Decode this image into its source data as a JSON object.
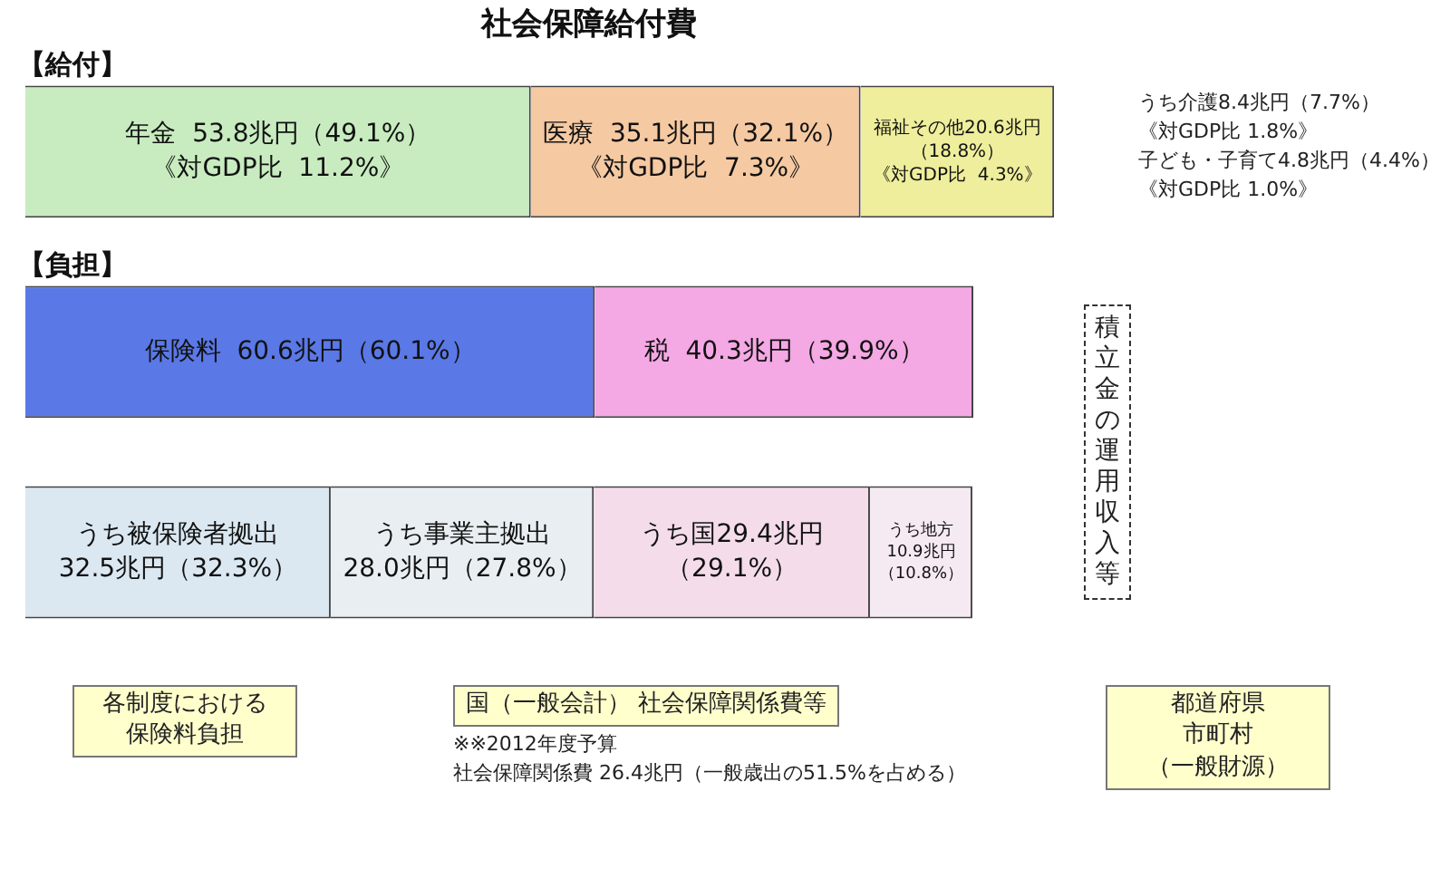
{
  "chart_data": {
    "type": "bar",
    "orientation": "horizontal",
    "stacked": true,
    "title": "社会保障給付費",
    "categories": [
      "【給付】",
      "【負担】",
      null
    ],
    "series": [
      {
        "color": "#c8ecc0",
        "values": [
          53.8,
          null,
          null
        ],
        "value_labels": [
          "年金  53.8兆円（49.1%）《対GDP比  11.2%》",
          null,
          null
        ]
      },
      {
        "color": "#f5c9a2",
        "values": [
          35.1,
          null,
          null
        ],
        "value_labels": [
          "医療  35.1兆円（32.1%）《対GDP比  7.3%》",
          null,
          null
        ]
      },
      {
        "color": "#eeee9c",
        "values": [
          20.6,
          null,
          null
        ],
        "value_labels": [
          "福祉その他20.6兆円（18.8%）《対GDP比  4.3%》",
          null,
          null
        ]
      },
      {
        "color": "#5a78e6",
        "values": [
          null,
          60.6,
          null
        ],
        "value_labels": [
          null,
          "保険料  60.6兆円（60.1%）",
          null
        ]
      },
      {
        "color": "#f4a8e4",
        "values": [
          null,
          40.3,
          null
        ],
        "value_labels": [
          null,
          "税  40.3兆円（39.9%）",
          null
        ]
      },
      {
        "color": "#dbe8f2",
        "values": [
          null,
          null,
          32.5
        ],
        "value_labels": [
          null,
          null,
          "うち被保険者拠出32.5兆円（32.3%）"
        ]
      },
      {
        "color": "#e8eef2",
        "values": [
          null,
          null,
          28.0
        ],
        "value_labels": [
          null,
          null,
          "うち事業主拠出28.0兆円（27.8%）"
        ]
      },
      {
        "color": "#f4dcea",
        "values": [
          null,
          null,
          29.4
        ],
        "value_labels": [
          null,
          null,
          "うち国29.4兆円（29.1%）"
        ]
      },
      {
        "color": "#f6eaf2",
        "values": [
          null,
          null,
          10.9
        ],
        "value_labels": [
          null,
          null,
          "うち地方10.9兆円（10.8%）"
        ]
      }
    ],
    "annotations": [
      "積立金の運用収入等",
      "うち介護8.4兆円（7.7%）",
      "《対GDP比  1.8%》",
      "子ども・子育て4.8兆円（4.4%）",
      "《対GDP比  1.0%》",
      "各制度における",
      "保険料負担",
      "国（一般会計）  社会保障関係費等",
      "※※2012年度予算",
      "社会保障関係費 26.4兆円（一般歳出の51.5%を占める）",
      "都道府県",
      "市町村",
      "（一般財源）"
    ],
    "tick_labels": false,
    "legend": false
  }
}
